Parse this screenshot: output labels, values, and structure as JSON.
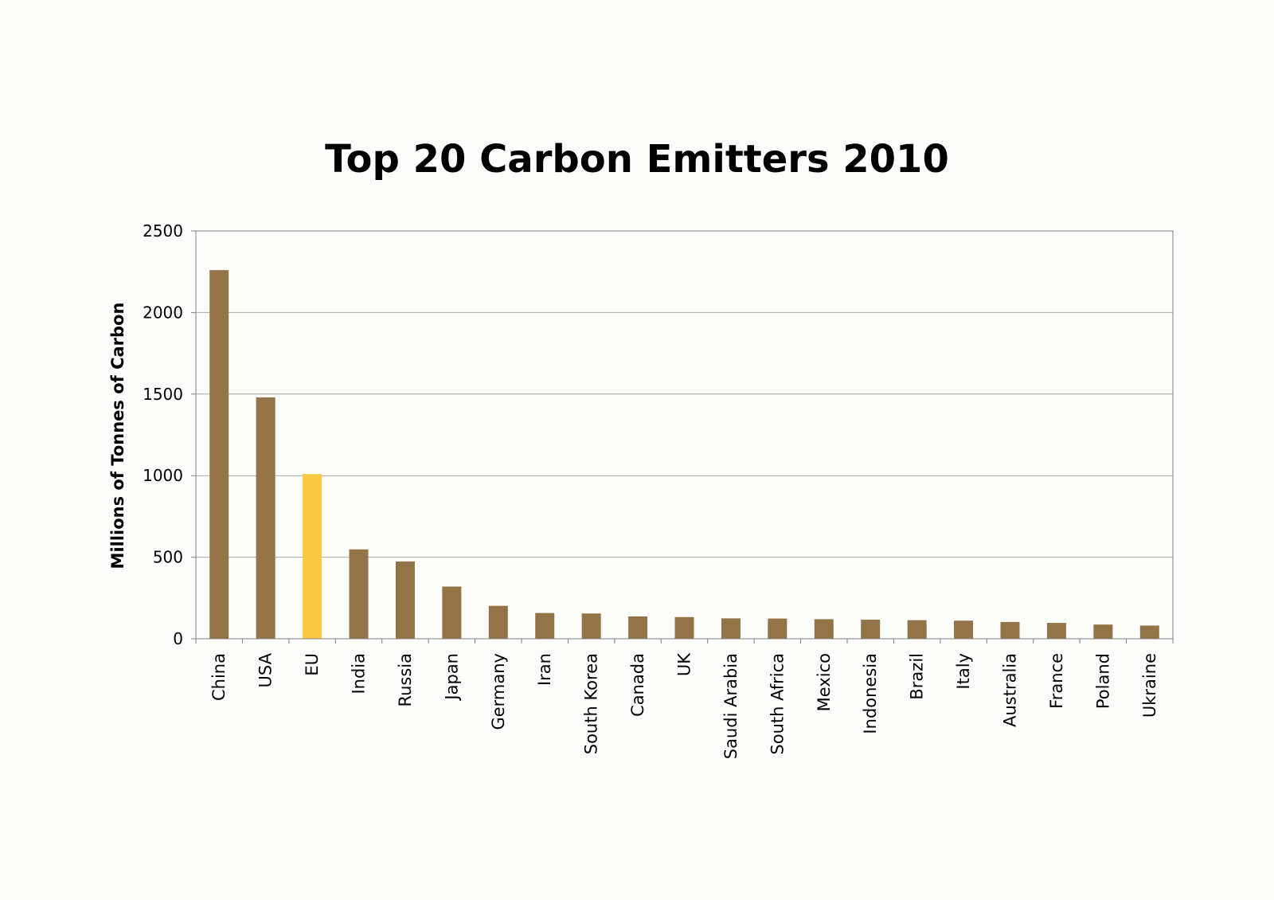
{
  "chart_data": {
    "type": "bar",
    "title": "Top 20 Carbon Emitters 2010",
    "ylabel": "Millions of Tonnes of Carbon",
    "xlabel": "",
    "ylim": [
      0,
      2500
    ],
    "yticks": [
      0,
      500,
      1000,
      1500,
      2000,
      2500
    ],
    "grid": true,
    "categories": [
      "China",
      "USA",
      "EU",
      "India",
      "Russia",
      "Japan",
      "Germany",
      "Iran",
      "South Korea",
      "Canada",
      "UK",
      "Saudi Arabia",
      "South Africa",
      "Mexico",
      "Indonesia",
      "Brazil",
      "Italy",
      "Australia",
      "France",
      "Poland",
      "Ukraine"
    ],
    "values": [
      2260,
      1480,
      1010,
      548,
      474,
      320,
      202,
      158,
      155,
      137,
      133,
      125,
      124,
      120,
      117,
      114,
      111,
      103,
      97,
      87,
      81
    ],
    "colors": {
      "default": "#927448",
      "highlight": "#fcc945",
      "gridline": "#a8a8a8",
      "axis": "#808080"
    },
    "highlight_category": "EU"
  }
}
